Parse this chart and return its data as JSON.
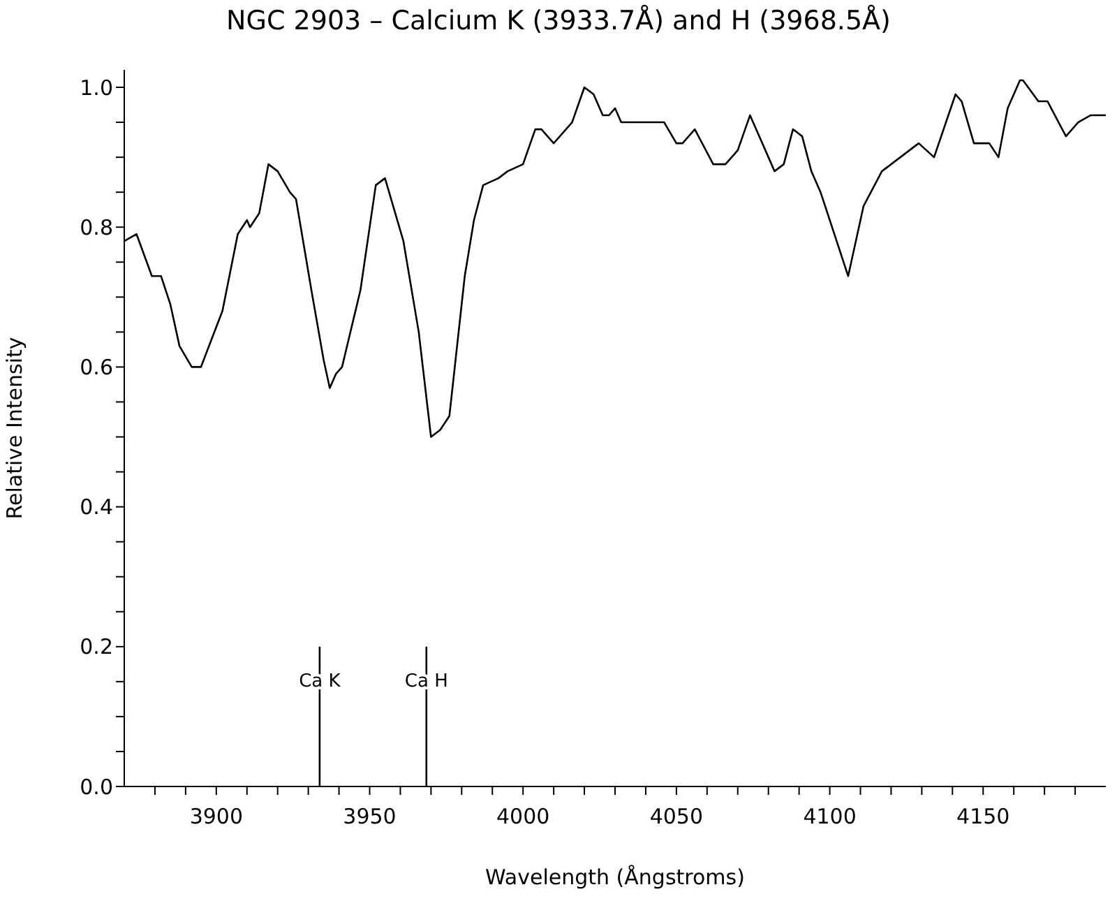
{
  "chart_data": {
    "type": "line",
    "title": "NGC 2903 – Calcium K (3933.7Å) and H (3968.5Å)",
    "xlabel": "Wavelength (Ångstroms)",
    "ylabel": "Relative Intensity",
    "xlim": [
      3870,
      4190
    ],
    "xticks": [
      {
        "value": 3880,
        "label": null
      },
      {
        "value": 3890,
        "label": null
      },
      3900,
      {
        "value": 3910,
        "label": null
      },
      {
        "value": 3920,
        "label": null
      },
      {
        "value": 3930,
        "label": null
      },
      {
        "value": 3940,
        "label": null
      },
      3950,
      {
        "value": 3960,
        "label": null
      },
      {
        "value": 3970,
        "label": null
      },
      {
        "value": 3980,
        "label": null
      },
      {
        "value": 3990,
        "label": null
      },
      4000,
      {
        "value": 4010,
        "label": null
      },
      {
        "value": 4020,
        "label": null
      },
      {
        "value": 4030,
        "label": null
      },
      {
        "value": 4040,
        "label": null
      },
      4050,
      {
        "value": 4060,
        "label": null
      },
      {
        "value": 4070,
        "label": null
      },
      {
        "value": 4080,
        "label": null
      },
      {
        "value": 4090,
        "label": null
      },
      4100,
      {
        "value": 4110,
        "label": null
      },
      {
        "value": 4120,
        "label": null
      },
      {
        "value": 4130,
        "label": null
      },
      {
        "value": 4140,
        "label": null
      },
      4150,
      {
        "value": 4160,
        "label": null
      },
      {
        "value": 4170,
        "label": null
      },
      {
        "value": 4180,
        "label": null
      }
    ],
    "ylim": [
      0,
      1.025
    ],
    "yticks": [
      {
        "value": 0,
        "label": "0.0"
      },
      {
        "value": 0.05,
        "label": null
      },
      {
        "value": 0.1,
        "label": null
      },
      {
        "value": 0.15,
        "label": null
      },
      {
        "value": 0.2,
        "label": "0.2"
      },
      {
        "value": 0.25,
        "label": null
      },
      {
        "value": 0.3,
        "label": null
      },
      {
        "value": 0.35,
        "label": null
      },
      {
        "value": 0.4,
        "label": "0.4"
      },
      {
        "value": 0.45,
        "label": null
      },
      {
        "value": 0.5,
        "label": null
      },
      {
        "value": 0.55,
        "label": null
      },
      {
        "value": 0.6,
        "label": "0.6"
      },
      {
        "value": 0.65,
        "label": null
      },
      {
        "value": 0.7,
        "label": null
      },
      {
        "value": 0.75,
        "label": null
      },
      {
        "value": 0.8,
        "label": "0.8"
      },
      {
        "value": 0.85,
        "label": null
      },
      {
        "value": 0.9,
        "label": null
      },
      {
        "value": 0.95,
        "label": null
      },
      {
        "value": 1,
        "label": "1.0"
      }
    ],
    "series": [
      {
        "color": "#000000",
        "x": [
          3870,
          3874,
          3879,
          3882,
          3885,
          3888,
          3892,
          3895,
          3902,
          3907,
          3910,
          3911,
          3914,
          3917,
          3920,
          3924,
          3926,
          3931,
          3935,
          3937,
          3939,
          3941,
          3947,
          3952,
          3955,
          3961,
          3966,
          3970,
          3973,
          3976,
          3981,
          3984,
          3987,
          3992,
          3995,
          4000,
          4004,
          4006,
          4010,
          4016,
          4020,
          4023,
          4026,
          4028,
          4030,
          4032,
          4038,
          4046,
          4050,
          4052,
          4056,
          4062,
          4066,
          4070,
          4074,
          4076,
          4082,
          4085,
          4088,
          4091,
          4094,
          4097,
          4100,
          4106,
          4111,
          4117,
          4123,
          4126,
          4129,
          4134,
          4141,
          4143,
          4147,
          4152,
          4155,
          4158,
          4162,
          4163,
          4168,
          4171,
          4177,
          4181,
          4185,
          4187,
          4190
        ],
        "values": [
          0.78,
          0.79,
          0.73,
          0.73,
          0.69,
          0.63,
          0.6,
          0.6,
          0.68,
          0.79,
          0.81,
          0.8,
          0.82,
          0.89,
          0.88,
          0.85,
          0.84,
          0.71,
          0.61,
          0.57,
          0.59,
          0.6,
          0.71,
          0.86,
          0.87,
          0.78,
          0.65,
          0.5,
          0.51,
          0.53,
          0.73,
          0.81,
          0.86,
          0.87,
          0.88,
          0.89,
          0.94,
          0.94,
          0.92,
          0.95,
          1.0,
          0.99,
          0.96,
          0.96,
          0.97,
          0.95,
          0.95,
          0.95,
          0.92,
          0.92,
          0.94,
          0.89,
          0.89,
          0.91,
          0.96,
          0.94,
          0.88,
          0.89,
          0.94,
          0.93,
          0.88,
          0.85,
          0.81,
          0.73,
          0.83,
          0.88,
          0.9,
          0.91,
          0.92,
          0.9,
          0.99,
          0.98,
          0.92,
          0.92,
          0.9,
          0.97,
          1.01,
          1.01,
          0.98,
          0.98,
          0.93,
          0.95,
          0.96,
          0.96,
          0.96
        ]
      },
      {
        "color": "#000000",
        "x": [
          3933.7,
          3933.7
        ],
        "values": [
          0,
          0.2
        ]
      },
      {
        "color": "#000000",
        "x": [
          3968.5,
          3968.5
        ],
        "values": [
          0,
          0.2
        ]
      }
    ],
    "annotations": [
      {
        "text": "Ca K",
        "x": 3933.7,
        "y": 0.15
      },
      {
        "text": "Ca H",
        "x": 3968.5,
        "y": 0.15
      }
    ]
  }
}
